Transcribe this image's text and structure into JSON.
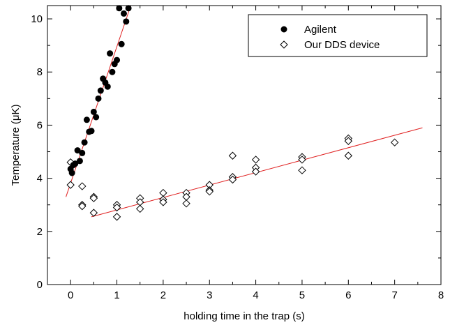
{
  "chart_data": {
    "type": "scatter",
    "title": "",
    "xlabel": "holding time in the trap (s)",
    "ylabel": "Temperature (μK)",
    "xlim": [
      -0.5,
      8
    ],
    "ylim": [
      0,
      10.5
    ],
    "xticks": [
      0,
      1,
      2,
      3,
      4,
      5,
      6,
      7,
      8
    ],
    "yticks": [
      0,
      2,
      4,
      6,
      8,
      10
    ],
    "grid": false,
    "legend_position": "top-right",
    "series": [
      {
        "name": "Agilent",
        "marker": "filled-circle",
        "color": "#000000",
        "points": [
          [
            0.0,
            4.35
          ],
          [
            0.03,
            4.2
          ],
          [
            0.06,
            4.5
          ],
          [
            0.1,
            4.55
          ],
          [
            0.15,
            5.05
          ],
          [
            0.2,
            4.65
          ],
          [
            0.25,
            4.95
          ],
          [
            0.3,
            5.35
          ],
          [
            0.35,
            6.2
          ],
          [
            0.4,
            5.75
          ],
          [
            0.45,
            5.78
          ],
          [
            0.5,
            6.5
          ],
          [
            0.55,
            6.3
          ],
          [
            0.6,
            7.0
          ],
          [
            0.65,
            7.3
          ],
          [
            0.7,
            7.75
          ],
          [
            0.75,
            7.6
          ],
          [
            0.8,
            7.45
          ],
          [
            0.85,
            8.7
          ],
          [
            0.9,
            8.0
          ],
          [
            0.95,
            8.3
          ],
          [
            1.0,
            8.45
          ],
          [
            1.05,
            10.4
          ],
          [
            1.1,
            9.05
          ],
          [
            1.15,
            10.2
          ],
          [
            1.2,
            9.9
          ],
          [
            1.25,
            10.4
          ]
        ]
      },
      {
        "name": "Our DDS device",
        "marker": "open-diamond",
        "color": "#000000",
        "points": [
          [
            0.0,
            4.6
          ],
          [
            0.0,
            3.75
          ],
          [
            0.25,
            3.7
          ],
          [
            0.25,
            3.0
          ],
          [
            0.25,
            2.95
          ],
          [
            0.5,
            3.3
          ],
          [
            0.5,
            3.25
          ],
          [
            0.5,
            2.7
          ],
          [
            1.0,
            3.0
          ],
          [
            1.0,
            2.9
          ],
          [
            1.0,
            2.55
          ],
          [
            1.5,
            3.25
          ],
          [
            1.5,
            3.1
          ],
          [
            1.5,
            2.85
          ],
          [
            2.0,
            3.45
          ],
          [
            2.0,
            3.2
          ],
          [
            2.0,
            3.1
          ],
          [
            2.5,
            3.45
          ],
          [
            2.5,
            3.3
          ],
          [
            2.5,
            3.05
          ],
          [
            3.0,
            3.75
          ],
          [
            3.0,
            3.55
          ],
          [
            3.0,
            3.5
          ],
          [
            3.5,
            4.85
          ],
          [
            3.5,
            4.05
          ],
          [
            3.5,
            3.95
          ],
          [
            4.0,
            4.7
          ],
          [
            4.0,
            4.4
          ],
          [
            4.0,
            4.25
          ],
          [
            5.0,
            4.8
          ],
          [
            5.0,
            4.7
          ],
          [
            5.0,
            4.3
          ],
          [
            6.0,
            5.5
          ],
          [
            6.0,
            5.4
          ],
          [
            6.0,
            4.85
          ],
          [
            7.0,
            5.35
          ]
        ]
      }
    ],
    "fit_lines": [
      {
        "series": "Agilent",
        "color": "#e02020",
        "from": [
          -0.1,
          3.3
        ],
        "to": [
          1.3,
          10.5
        ]
      },
      {
        "series": "Our DDS device",
        "color": "#e02020",
        "from": [
          0.45,
          2.55
        ],
        "to": [
          7.6,
          5.9
        ]
      }
    ]
  }
}
